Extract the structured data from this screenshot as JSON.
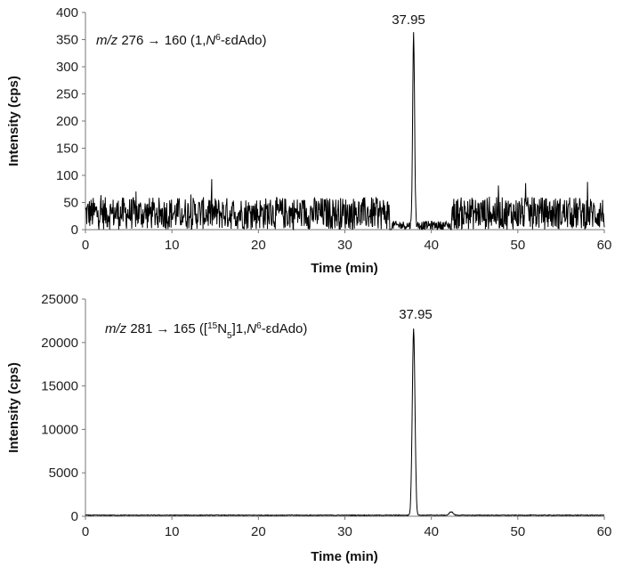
{
  "chart_data": [
    {
      "type": "line",
      "xlabel": "Time (min)",
      "ylabel": "Intensity (cps)",
      "xlim": [
        0,
        60
      ],
      "ylim": [
        0,
        400
      ],
      "xticks": [
        "0",
        "10",
        "20",
        "30",
        "40",
        "50",
        "60"
      ],
      "yticks": [
        "0",
        "50",
        "100",
        "150",
        "200",
        "250",
        "300",
        "350",
        "400"
      ],
      "annotation": {
        "italic": "m/z",
        "text": " 276 → 160 (1,",
        "n_italic": "N",
        "n_sup": "6",
        "tail": "-εdAdo)"
      },
      "peak_label": "37.95",
      "peak": {
        "x": 37.95,
        "y": 352
      },
      "noise": [
        {
          "x_start": 0,
          "x_end": 35.2,
          "level": 30,
          "spread": 30
        },
        {
          "x_start": 35.4,
          "x_end": 42.2,
          "level": 8,
          "spread": 8
        },
        {
          "x_start": 42.3,
          "x_end": 60,
          "level": 30,
          "spread": 30
        }
      ],
      "grid": false
    },
    {
      "type": "line",
      "xlabel": "Time (min)",
      "ylabel": "Intensity (cps)",
      "xlim": [
        0,
        60
      ],
      "ylim": [
        0,
        25000
      ],
      "xticks": [
        "0",
        "10",
        "20",
        "30",
        "40",
        "50",
        "60"
      ],
      "yticks": [
        "0",
        "5000",
        "10000",
        "15000",
        "20000",
        "25000"
      ],
      "annotation": {
        "italic": "m/z",
        "text": " 281 → 165 ([",
        "sup1": "15",
        "mid": "N",
        "sub1": "5",
        "mid2": "]1,",
        "n_italic": "N",
        "n_sup": "6",
        "tail": "-εdAdo)"
      },
      "peak_label": "37.95",
      "peak": {
        "x": 37.95,
        "y": 21500
      },
      "noise": [
        {
          "x_start": 0,
          "x_end": 60,
          "level": 120,
          "spread": 80
        }
      ],
      "bump": {
        "x": 42.3,
        "y": 400
      },
      "grid": false
    }
  ]
}
